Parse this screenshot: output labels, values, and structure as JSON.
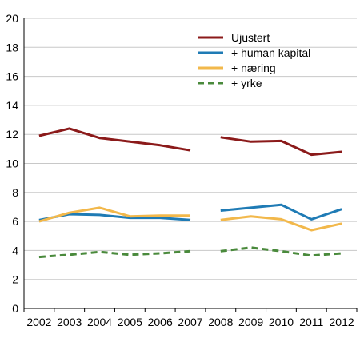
{
  "chart_data": {
    "type": "line",
    "x": [
      "2002",
      "2003",
      "2004",
      "2005",
      "2006",
      "2007",
      "2008",
      "2009",
      "2010",
      "2011",
      "2012"
    ],
    "ylim": [
      0,
      20
    ],
    "yticks": [
      0,
      2,
      4,
      6,
      8,
      10,
      12,
      14,
      16,
      18,
      20
    ],
    "grid": true,
    "legend_position": "top-right",
    "series": [
      {
        "name": "Ujustert",
        "color": "#8b1a1a",
        "dashed": false,
        "values": [
          11.9,
          12.4,
          11.75,
          11.5,
          11.25,
          10.9,
          11.8,
          11.5,
          11.55,
          10.6,
          10.8
        ]
      },
      {
        "name": "+ human kapital",
        "color": "#1f7bb5",
        "dashed": false,
        "values": [
          6.1,
          6.5,
          6.45,
          6.25,
          6.25,
          6.1,
          6.75,
          6.95,
          7.15,
          6.15,
          6.85
        ]
      },
      {
        "name": "+ næring",
        "color": "#f2b84b",
        "dashed": false,
        "values": [
          6.0,
          6.6,
          6.95,
          6.35,
          6.4,
          6.4,
          6.1,
          6.35,
          6.15,
          5.4,
          5.85
        ]
      },
      {
        "name": "+ yrke",
        "color": "#4a8a3c",
        "dashed": true,
        "values": [
          3.55,
          3.7,
          3.9,
          3.7,
          3.8,
          3.95,
          3.95,
          4.2,
          3.95,
          3.65,
          3.8
        ]
      }
    ],
    "break_after": "2007"
  }
}
